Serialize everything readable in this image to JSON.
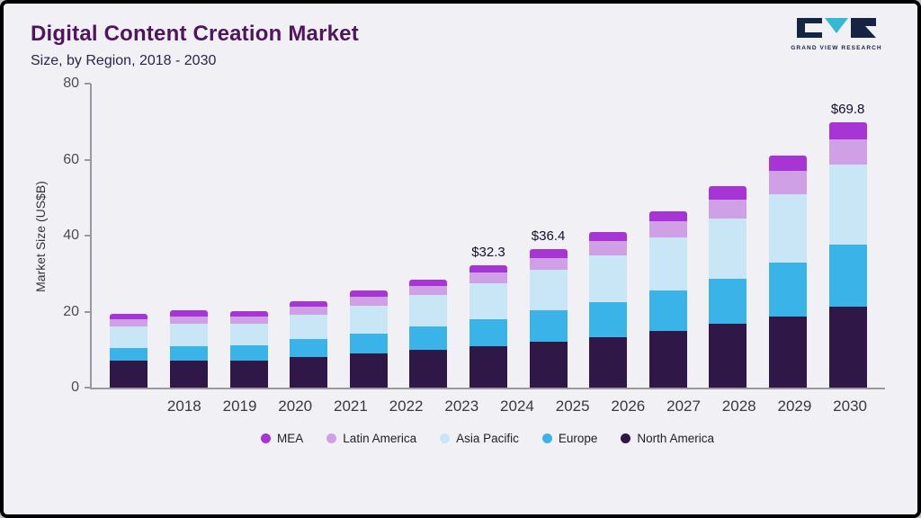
{
  "header": {
    "title": "Digital Content Creation Market",
    "subtitle": "Size, by Region, 2018 - 2030"
  },
  "logo": {
    "text": "GRAND VIEW RESEARCH"
  },
  "chart_data": {
    "type": "bar",
    "stacked": true,
    "title": "Digital Content Creation Market",
    "subtitle": "Size, by Region, 2018 - 2030",
    "ylabel": "Market Size (US$B)",
    "ylim": [
      0,
      80
    ],
    "yticks": [
      0,
      20,
      40,
      60,
      80
    ],
    "grid": false,
    "legend_position": "bottom",
    "categories": [
      "2018",
      "2019",
      "2020",
      "2021",
      "2022",
      "2023",
      "2024",
      "2025",
      "2026",
      "2027",
      "2028",
      "2029",
      "2030"
    ],
    "series": [
      {
        "name": "North America",
        "color": "#2f1747",
        "values": [
          7.0,
          7.2,
          7.2,
          8.0,
          9.0,
          10.0,
          10.8,
          12.0,
          13.3,
          15.0,
          16.7,
          18.8,
          21.2
        ]
      },
      {
        "name": "Europe",
        "color": "#3ab4e8",
        "values": [
          3.5,
          3.8,
          4.0,
          4.8,
          5.3,
          6.0,
          7.2,
          8.4,
          9.3,
          10.5,
          12.0,
          14.0,
          16.5
        ]
      },
      {
        "name": "Asia Pacific",
        "color": "#c9e6f7",
        "values": [
          5.5,
          5.8,
          5.6,
          6.3,
          7.3,
          8.5,
          9.5,
          10.7,
          12.2,
          14.0,
          15.8,
          18.2,
          21.0
        ]
      },
      {
        "name": "Latin America",
        "color": "#cfa0e6",
        "values": [
          2.0,
          2.0,
          2.0,
          2.2,
          2.3,
          2.3,
          2.8,
          3.1,
          3.7,
          4.2,
          5.0,
          6.0,
          6.6
        ]
      },
      {
        "name": "MEA",
        "color": "#a734d4",
        "values": [
          1.5,
          1.5,
          1.4,
          1.5,
          1.7,
          1.7,
          2.0,
          2.2,
          2.5,
          2.8,
          3.5,
          4.0,
          4.5
        ]
      }
    ],
    "stack_order": "bottom-to-top",
    "legend_order": [
      "MEA",
      "Latin America",
      "Asia Pacific",
      "Europe",
      "North America"
    ],
    "annotations": [
      {
        "category": "2024",
        "label": "$32.3"
      },
      {
        "category": "2025",
        "label": "$36.4"
      },
      {
        "category": "2030",
        "label": "$69.8"
      }
    ]
  }
}
